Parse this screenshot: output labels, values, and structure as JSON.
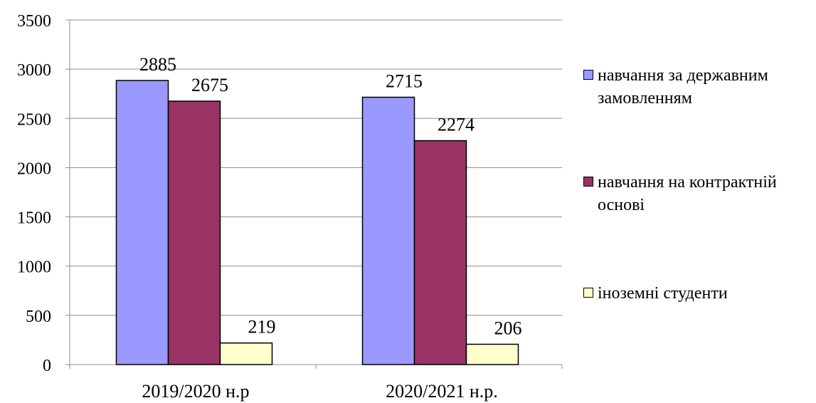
{
  "chart_data": {
    "type": "bar",
    "categories": [
      "2019/2020 н.р",
      "2020/2021 н.р."
    ],
    "series": [
      {
        "name": "навчання за державним замовленням",
        "values": [
          2885,
          2715
        ],
        "color": "#9999ff",
        "data_labels": [
          "2885",
          "2715"
        ]
      },
      {
        "name": "навчання на контрактній основі",
        "values": [
          2675,
          2274
        ],
        "color": "#993366",
        "data_labels": [
          "2675",
          "2274"
        ]
      },
      {
        "name": "іноземні студенти",
        "values": [
          219,
          206
        ],
        "color": "#ffffcc",
        "data_labels": [
          "219",
          "206"
        ]
      }
    ],
    "ylim": [
      0,
      3500
    ],
    "yticks": [
      0,
      500,
      1000,
      1500,
      2000,
      2500,
      3000,
      3500
    ],
    "title": "",
    "xlabel": "",
    "ylabel": "",
    "grid": true,
    "legend_position": "right"
  }
}
